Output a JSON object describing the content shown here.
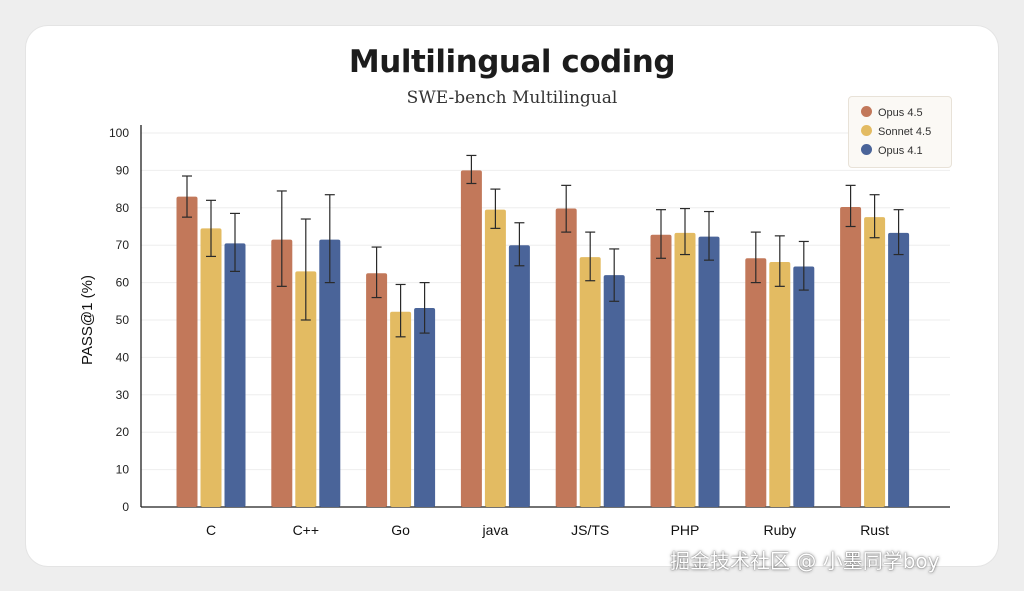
{
  "chart_data": {
    "type": "bar",
    "title": "Multilingual coding",
    "subtitle": "SWE-bench Multilingual",
    "ylabel": "PASS@1 (%)",
    "xlabel": "",
    "ylim": [
      0,
      100
    ],
    "yticks": [
      0,
      10,
      20,
      30,
      40,
      50,
      60,
      70,
      80,
      90,
      100
    ],
    "grid": true,
    "legend_position": "top-right",
    "categories": [
      "C",
      "C++",
      "Go",
      "java",
      "JS/TS",
      "PHP",
      "Ruby",
      "Rust"
    ],
    "series": [
      {
        "name": "Opus 4.5",
        "color": "#c2785a",
        "values": [
          83,
          71.5,
          62.5,
          90,
          79.8,
          72.8,
          66.5,
          80.2
        ],
        "err_low": [
          77.5,
          59,
          56,
          86.5,
          73.5,
          66.5,
          60,
          75
        ],
        "err_high": [
          88.5,
          84.5,
          69.5,
          94,
          86,
          79.5,
          73.5,
          86
        ]
      },
      {
        "name": "Sonnet 4.5",
        "color": "#e3bb62",
        "values": [
          74.5,
          63,
          52.2,
          79.5,
          66.8,
          73.3,
          65.5,
          77.5
        ],
        "err_low": [
          67,
          50,
          45.5,
          74.5,
          60.5,
          67.5,
          59,
          72
        ],
        "err_high": [
          82,
          77,
          59.5,
          85,
          73.5,
          79.8,
          72.5,
          83.5
        ]
      },
      {
        "name": "Opus 4.1",
        "color": "#4a6499",
        "values": [
          70.5,
          71.5,
          53.2,
          70,
          62,
          72.3,
          64.3,
          73.3
        ],
        "err_low": [
          63,
          60,
          46.5,
          64.5,
          55,
          66,
          58,
          67.5
        ],
        "err_high": [
          78.5,
          83.5,
          60,
          76,
          69,
          79,
          71,
          79.5
        ]
      }
    ]
  },
  "watermark": "掘金技术社区 @ 小墨同学boy"
}
